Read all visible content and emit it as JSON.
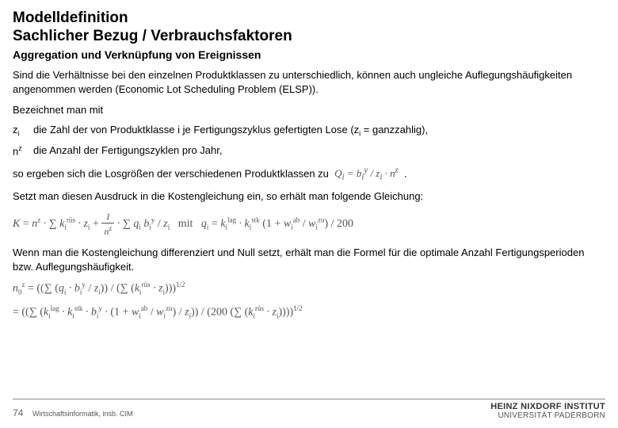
{
  "title_line1": "Modelldefinition",
  "title_line2": "Sachlicher Bezug / Verbrauchsfaktoren",
  "subtitle": "Aggregation und Verknüpfung von Ereignissen",
  "para1": "Sind die Verhältnisse bei den einzelnen Produktklassen zu unterschiedlich, können auch ungleiche Auflegungshäufigkeiten angenommen werden (Economic Lot Scheduling Problem (ELSP)).",
  "para2": "Bezeichnet man mit",
  "zi_text": "die Zahl der von Produktklasse i je Fertigungszyklus gefertigten Lose (",
  "zi_suffix": " = ganzzahlig),",
  "nz_text": "die Anzahl der Fertigungszyklen pro Jahr,",
  "para3": "so ergeben sich die Losgrößen der verschiedenen Produktklassen zu",
  "para4": "Setzt man diesen Ausdruck in die Kostengleichung ein, so erhält man folgende Gleichung:",
  "para5": "Wenn man die Kostengleichung differenziert und Null setzt, erhält man die Formel für die optimale Anzahl Fertigungsperioden bzw. Auflegungshäufigkeit.",
  "page_number": "74",
  "department": "Wirtschaftsinformatik, insb. CIM",
  "institute_l1": "HEINZ NIXDORF INSTITUT",
  "institute_l2": "UNIVERSITÄT PADERBORN",
  "colors": {
    "text": "#000000",
    "eq": "#555555",
    "footer_rule": "#888888",
    "bg": "#ffffff"
  },
  "equations_plain": {
    "q_i": "Q_i = b_i^y / z_i · n^z",
    "K": "K = n^z · Σ k_i^rüs · z_i + (1/n^z) · Σ q_i b_i^y / z_i  mit  q_i = k_i^lag · k_i^stk (1 + w_i^ab / w_i^zu) / 200",
    "n0": "n_0^z = ((Σ (q_i · b_i^y / z_i)) / (Σ (k_i^rüs · z_i)))^{1/2}",
    "n0_expanded": "= ((Σ (k_i^lag · k_i^stk · b_i^y · (1 + w_i^ab / w_i^zu) / z_i)) / (200 (Σ (k_i^rüs · z_i))))^{1/2}"
  }
}
